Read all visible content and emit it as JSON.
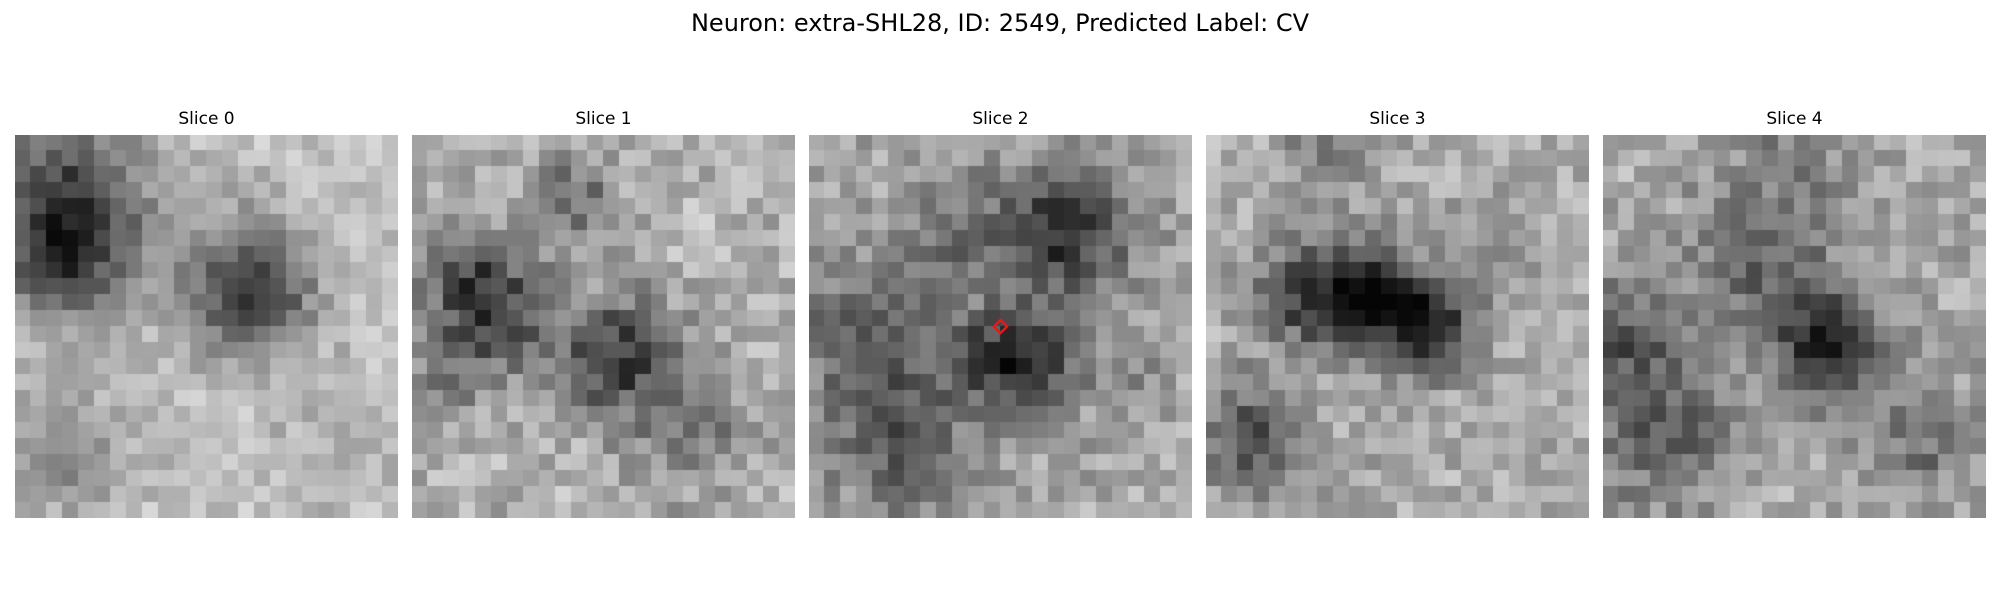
{
  "figure": {
    "title": "Neuron: extra-SHL28, ID: 2549, Predicted Label: CV"
  },
  "panels": [
    {
      "title": "Slice 0"
    },
    {
      "title": "Slice 1"
    },
    {
      "title": "Slice 2"
    },
    {
      "title": "Slice 3"
    },
    {
      "title": "Slice 4"
    }
  ],
  "colormap": "gray",
  "marker": {
    "panel_index": 2,
    "shape": "diamond",
    "color": "#e31a1c"
  }
}
